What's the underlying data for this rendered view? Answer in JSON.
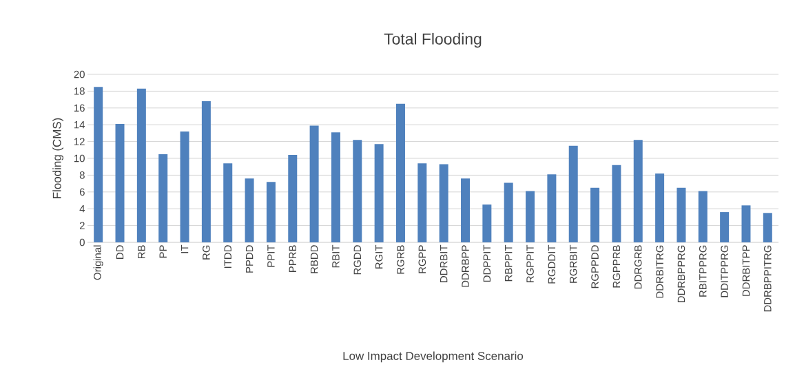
{
  "chart_data": {
    "type": "bar",
    "title": "Total Flooding",
    "xlabel": "Low Impact Development Scenario",
    "ylabel": "Flooding (CMS)",
    "categories": [
      "Original",
      "DD",
      "RB",
      "PP",
      "IT",
      "RG",
      "ITDD",
      "PPDD",
      "PPIT",
      "PPRB",
      "RBDD",
      "RBIT",
      "RGDD",
      "RGIT",
      "RGRB",
      "RGPP",
      "DDRBIT",
      "DDRBPP",
      "DDPPIT",
      "RBPPIT",
      "RGPPIT",
      "RGDDIT",
      "RGRBIT",
      "RGPPDD",
      "RGPPRB",
      "DDRGRB",
      "DDRBITRG",
      "DDRBPPRG",
      "RBITPPRG",
      "DDITPPRG",
      "DDRBITPP",
      "DDRBPPITRG"
    ],
    "values": [
      18.5,
      14.1,
      18.3,
      10.5,
      13.2,
      16.8,
      9.4,
      7.6,
      7.2,
      10.4,
      13.9,
      13.1,
      12.2,
      11.7,
      16.5,
      9.4,
      9.3,
      7.6,
      4.5,
      7.1,
      6.1,
      8.1,
      11.5,
      6.5,
      9.2,
      12.2,
      8.2,
      6.5,
      6.1,
      3.6,
      4.4,
      3.5
    ],
    "color": "#4f81bd",
    "ylim": [
      0,
      20
    ],
    "yticks": [
      0,
      2,
      4,
      6,
      8,
      10,
      12,
      14,
      16,
      18,
      20
    ],
    "grid": "y"
  }
}
